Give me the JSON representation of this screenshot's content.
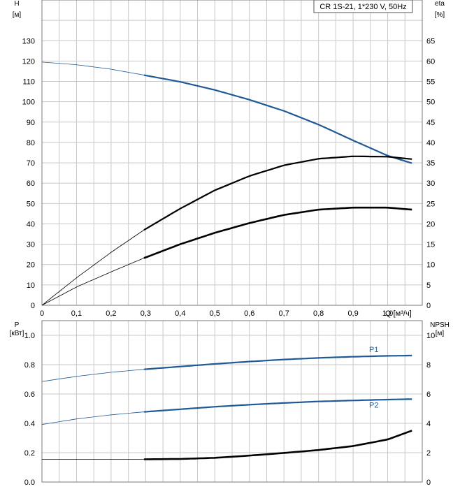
{
  "chart_data": [
    {
      "type": "line",
      "title": "CR 1S-21, 1*230 V, 50Hz",
      "xlabel": "Q [м³/ч]",
      "x_ticks": [
        "0",
        "0,1",
        "0,2",
        "0,3",
        "0,4",
        "0,5",
        "0,6",
        "0,7",
        "0,8",
        "0,9",
        "1,0"
      ],
      "xlim": [
        0,
        1.1
      ],
      "grid": true,
      "y_left": {
        "label": "H",
        "unit": "[м]",
        "ticks": [
          "0",
          "10",
          "20",
          "30",
          "40",
          "50",
          "60",
          "70",
          "80",
          "90",
          "100",
          "110",
          "120",
          "130"
        ],
        "range": [
          0,
          150
        ]
      },
      "y_right": {
        "label": "eta",
        "unit": "[%]",
        "ticks": [
          "0",
          "5",
          "10",
          "15",
          "20",
          "25",
          "30",
          "35",
          "40",
          "45",
          "50",
          "55",
          "60",
          "65"
        ],
        "range": [
          0,
          75
        ]
      },
      "series": [
        {
          "axis": "left",
          "color": "#1f5a96",
          "operating_range_start": 0.295,
          "x": [
            0,
            0.1,
            0.2,
            0.295,
            0.4,
            0.5,
            0.6,
            0.7,
            0.8,
            0.9,
            1.0,
            1.07
          ],
          "values": [
            119.5,
            118.2,
            116.0,
            113.1,
            109.8,
            105.8,
            101.0,
            95.5,
            88.8,
            81.0,
            73.5,
            69.8
          ]
        },
        {
          "axis": "left",
          "color": "#000000",
          "operating_range_start": 0.295,
          "x": [
            0,
            0.1,
            0.2,
            0.295,
            0.4,
            0.5,
            0.6,
            0.7,
            0.8,
            0.9,
            1.0,
            1.07
          ],
          "values": [
            0,
            13.5,
            26.0,
            37.0,
            47.5,
            56.5,
            63.5,
            68.8,
            72.0,
            73.2,
            73.0,
            71.8
          ]
        },
        {
          "axis": "right",
          "color": "#000000",
          "operating_range_start": 0.295,
          "x": [
            0,
            0.1,
            0.2,
            0.295,
            0.4,
            0.5,
            0.6,
            0.7,
            0.8,
            0.9,
            1.0,
            1.07
          ],
          "values": [
            0,
            4.5,
            8.2,
            11.6,
            15.0,
            17.8,
            20.2,
            22.2,
            23.5,
            24.0,
            24.0,
            23.5
          ]
        }
      ]
    },
    {
      "type": "line",
      "xlim": [
        0,
        1.1
      ],
      "grid": true,
      "y_left": {
        "label": "P",
        "unit": "[кВт]",
        "ticks": [
          "0.0",
          "0.2",
          "0.4",
          "0.6",
          "0.8",
          "1.0"
        ],
        "range": [
          0,
          1.1
        ]
      },
      "y_right": {
        "label": "NPSH",
        "unit": "[м]",
        "ticks": [
          "0",
          "2",
          "4",
          "6",
          "8",
          "10"
        ],
        "range": [
          0,
          11
        ]
      },
      "series": [
        {
          "name": "P1",
          "axis": "left",
          "color": "#1f5a96",
          "operating_range_start": 0.295,
          "x": [
            0,
            0.1,
            0.2,
            0.295,
            0.4,
            0.5,
            0.6,
            0.7,
            0.8,
            0.9,
            1.0,
            1.07
          ],
          "values": [
            0.685,
            0.72,
            0.748,
            0.768,
            0.787,
            0.805,
            0.821,
            0.835,
            0.846,
            0.854,
            0.86,
            0.862
          ]
        },
        {
          "name": "P2",
          "axis": "left",
          "color": "#1f5a96",
          "operating_range_start": 0.295,
          "x": [
            0,
            0.1,
            0.2,
            0.295,
            0.4,
            0.5,
            0.6,
            0.7,
            0.8,
            0.9,
            1.0,
            1.07
          ],
          "values": [
            0.392,
            0.43,
            0.458,
            0.478,
            0.496,
            0.513,
            0.527,
            0.539,
            0.549,
            0.556,
            0.562,
            0.565
          ]
        },
        {
          "axis": "right",
          "color": "#000000",
          "operating_range_start": 0.295,
          "x": [
            0,
            0.1,
            0.2,
            0.295,
            0.4,
            0.5,
            0.6,
            0.7,
            0.8,
            0.9,
            1.0,
            1.07
          ],
          "values": [
            1.55,
            1.55,
            1.55,
            1.55,
            1.57,
            1.65,
            1.8,
            1.98,
            2.18,
            2.45,
            2.9,
            3.5
          ]
        }
      ]
    }
  ]
}
